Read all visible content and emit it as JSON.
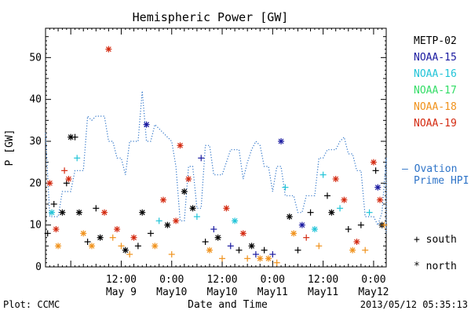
{
  "chart_data": {
    "type": "scatter",
    "title": "Hemispheric Power [GW]",
    "ylabel": "P [GW]",
    "xlabel": "Date and Time",
    "ylim": [
      0,
      57
    ],
    "xlim": [
      "2013-05-08 18:00",
      "2013-05-12 03:00"
    ],
    "yticks": [
      "0",
      "10",
      "20",
      "30",
      "40",
      "50"
    ],
    "xticks": [
      {
        "time": "2013-05-09 12:00",
        "l1": "12:00",
        "l2": "May 9"
      },
      {
        "time": "2013-05-10 00:00",
        "l1": "0:00",
        "l2": "May10"
      },
      {
        "time": "2013-05-10 12:00",
        "l1": "12:00",
        "l2": "May10"
      },
      {
        "time": "2013-05-11 00:00",
        "l1": "0:00",
        "l2": "May11"
      },
      {
        "time": "2013-05-11 12:00",
        "l1": "12:00",
        "l2": "May11"
      },
      {
        "time": "2013-05-12 00:00",
        "l1": "0:00",
        "l2": "May12"
      }
    ],
    "series": [
      {
        "name": "METP-02",
        "color": "#000000"
      },
      {
        "name": "NOAA-15",
        "color": "#1a1aa0"
      },
      {
        "name": "NOAA-16",
        "color": "#22c4d8"
      },
      {
        "name": "NOAA-17",
        "color": "#33dd66"
      },
      {
        "name": "NOAA-18",
        "color": "#f0921c"
      },
      {
        "name": "NOAA-19",
        "color": "#d42a10"
      }
    ],
    "ovation": {
      "name": "— Ovation Prime HPI",
      "color": "#2e74c8",
      "points": [
        [
          "05-08 18:00",
          32
        ],
        [
          "05-08 19:00",
          12
        ],
        [
          "05-08 21:00",
          12
        ],
        [
          "05-08 22:00",
          18
        ],
        [
          "05-09 00:00",
          18
        ],
        [
          "05-09 01:00",
          23
        ],
        [
          "05-09 03:00",
          23
        ],
        [
          "05-09 04:00",
          36
        ],
        [
          "05-09 05:00",
          35
        ],
        [
          "05-09 06:00",
          36
        ],
        [
          "05-09 08:00",
          36
        ],
        [
          "05-09 09:00",
          30
        ],
        [
          "05-09 10:00",
          30
        ],
        [
          "05-09 11:00",
          26
        ],
        [
          "05-09 12:00",
          26
        ],
        [
          "05-09 13:00",
          22
        ],
        [
          "05-09 14:00",
          30
        ],
        [
          "05-09 16:00",
          30
        ],
        [
          "05-09 17:00",
          42
        ],
        [
          "05-09 18:00",
          30
        ],
        [
          "05-09 19:00",
          30
        ],
        [
          "05-09 20:00",
          34
        ],
        [
          "05-09 22:00",
          32
        ],
        [
          "05-10 00:00",
          30
        ],
        [
          "05-10 01:00",
          24
        ],
        [
          "05-10 02:00",
          11
        ],
        [
          "05-10 03:00",
          11
        ],
        [
          "05-10 04:00",
          24
        ],
        [
          "05-10 05:00",
          24
        ],
        [
          "05-10 06:00",
          14
        ],
        [
          "05-10 07:00",
          14
        ],
        [
          "05-10 08:00",
          29
        ],
        [
          "05-10 09:00",
          29
        ],
        [
          "05-10 10:00",
          22
        ],
        [
          "05-10 12:00",
          22
        ],
        [
          "05-10 13:00",
          25
        ],
        [
          "05-10 14:00",
          28
        ],
        [
          "05-10 16:00",
          28
        ],
        [
          "05-10 17:00",
          21
        ],
        [
          "05-10 18:00",
          25
        ],
        [
          "05-10 19:00",
          28
        ],
        [
          "05-10 20:00",
          30
        ],
        [
          "05-10 21:00",
          29
        ],
        [
          "05-10 22:00",
          24
        ],
        [
          "05-10 23:00",
          24
        ],
        [
          "05-11 00:00",
          18
        ],
        [
          "05-11 01:00",
          24
        ],
        [
          "05-11 02:00",
          24
        ],
        [
          "05-11 03:00",
          17
        ],
        [
          "05-11 05:00",
          17
        ],
        [
          "05-11 06:00",
          13
        ],
        [
          "05-11 07:00",
          13
        ],
        [
          "05-11 08:00",
          17
        ],
        [
          "05-11 09:00",
          17
        ],
        [
          "05-11 10:00",
          17
        ],
        [
          "05-11 11:00",
          26
        ],
        [
          "05-11 12:00",
          26
        ],
        [
          "05-11 13:00",
          28
        ],
        [
          "05-11 15:00",
          28
        ],
        [
          "05-11 16:00",
          30
        ],
        [
          "05-11 17:00",
          31
        ],
        [
          "05-11 18:00",
          27
        ],
        [
          "05-11 19:00",
          27
        ],
        [
          "05-11 20:00",
          23
        ],
        [
          "05-11 21:00",
          23
        ],
        [
          "05-11 22:00",
          12
        ],
        [
          "05-12 00:00",
          12
        ],
        [
          "05-12 01:00",
          10
        ],
        [
          "05-12 02:00",
          13
        ],
        [
          "05-12 03:00",
          26
        ],
        [
          "05-12 03:00",
          8
        ]
      ]
    },
    "markers": [
      {
        "name": "+ south"
      },
      {
        "name": "* north"
      }
    ],
    "points": [
      {
        "t": "05-08 18:30",
        "v": 8,
        "s": 0,
        "m": "+"
      },
      {
        "t": "05-08 19:00",
        "v": 20,
        "s": 5,
        "m": "*"
      },
      {
        "t": "05-08 19:30",
        "v": 13,
        "s": 2,
        "m": "*"
      },
      {
        "t": "05-08 20:00",
        "v": 15,
        "s": 0,
        "m": "+"
      },
      {
        "t": "05-08 20:30",
        "v": 9,
        "s": 5,
        "m": "*"
      },
      {
        "t": "05-08 21:00",
        "v": 5,
        "s": 4,
        "m": "*"
      },
      {
        "t": "05-08 22:00",
        "v": 13,
        "s": 0,
        "m": "*"
      },
      {
        "t": "05-08 22:30",
        "v": 23,
        "s": 5,
        "m": "+"
      },
      {
        "t": "05-08 23:00",
        "v": 20,
        "s": 0,
        "m": "+"
      },
      {
        "t": "05-08 23:30",
        "v": 21,
        "s": 5,
        "m": "*"
      },
      {
        "t": "05-09 00:00",
        "v": 31,
        "s": 0,
        "m": "*"
      },
      {
        "t": "05-09 01:00",
        "v": 31,
        "s": 0,
        "m": "+"
      },
      {
        "t": "05-09 01:30",
        "v": 26,
        "s": 2,
        "m": "+"
      },
      {
        "t": "05-09 02:00",
        "v": 13,
        "s": 0,
        "m": "*"
      },
      {
        "t": "05-09 03:00",
        "v": 8,
        "s": 4,
        "m": "*"
      },
      {
        "t": "05-09 04:00",
        "v": 6,
        "s": 0,
        "m": "+"
      },
      {
        "t": "05-09 05:00",
        "v": 5,
        "s": 4,
        "m": "*"
      },
      {
        "t": "05-09 06:00",
        "v": 14,
        "s": 0,
        "m": "+"
      },
      {
        "t": "05-09 07:00",
        "v": 7,
        "s": 0,
        "m": "*"
      },
      {
        "t": "05-09 08:00",
        "v": 13,
        "s": 5,
        "m": "*"
      },
      {
        "t": "05-09 09:00",
        "v": 52,
        "s": 5,
        "m": "*"
      },
      {
        "t": "05-09 10:00",
        "v": 7,
        "s": 4,
        "m": "+"
      },
      {
        "t": "05-09 11:00",
        "v": 9,
        "s": 5,
        "m": "*"
      },
      {
        "t": "05-09 12:00",
        "v": 5,
        "s": 4,
        "m": "+"
      },
      {
        "t": "05-09 13:00",
        "v": 4,
        "s": 0,
        "m": "*"
      },
      {
        "t": "05-09 14:00",
        "v": 3,
        "s": 4,
        "m": "+"
      },
      {
        "t": "05-09 15:00",
        "v": 7,
        "s": 5,
        "m": "*"
      },
      {
        "t": "05-09 16:00",
        "v": 5,
        "s": 0,
        "m": "+"
      },
      {
        "t": "05-09 17:00",
        "v": 13,
        "s": 0,
        "m": "*"
      },
      {
        "t": "05-09 18:00",
        "v": 34,
        "s": 1,
        "m": "*"
      },
      {
        "t": "05-09 19:00",
        "v": 8,
        "s": 0,
        "m": "+"
      },
      {
        "t": "05-09 20:00",
        "v": 5,
        "s": 4,
        "m": "*"
      },
      {
        "t": "05-09 21:00",
        "v": 11,
        "s": 2,
        "m": "+"
      },
      {
        "t": "05-09 22:00",
        "v": 16,
        "s": 5,
        "m": "*"
      },
      {
        "t": "05-09 23:00",
        "v": 10,
        "s": 0,
        "m": "*"
      },
      {
        "t": "05-10 00:00",
        "v": 3,
        "s": 4,
        "m": "+"
      },
      {
        "t": "05-10 01:00",
        "v": 11,
        "s": 5,
        "m": "*"
      },
      {
        "t": "05-10 02:00",
        "v": 29,
        "s": 5,
        "m": "*"
      },
      {
        "t": "05-10 03:00",
        "v": 18,
        "s": 0,
        "m": "*"
      },
      {
        "t": "05-10 04:00",
        "v": 21,
        "s": 5,
        "m": "*"
      },
      {
        "t": "05-10 05:00",
        "v": 14,
        "s": 0,
        "m": "*"
      },
      {
        "t": "05-10 06:00",
        "v": 12,
        "s": 2,
        "m": "+"
      },
      {
        "t": "05-10 07:00",
        "v": 26,
        "s": 1,
        "m": "+"
      },
      {
        "t": "05-10 08:00",
        "v": 6,
        "s": 0,
        "m": "+"
      },
      {
        "t": "05-10 09:00",
        "v": 4,
        "s": 4,
        "m": "*"
      },
      {
        "t": "05-10 10:00",
        "v": 9,
        "s": 1,
        "m": "+"
      },
      {
        "t": "05-10 11:00",
        "v": 7,
        "s": 0,
        "m": "*"
      },
      {
        "t": "05-10 12:00",
        "v": 2,
        "s": 4,
        "m": "+"
      },
      {
        "t": "05-10 13:00",
        "v": 14,
        "s": 5,
        "m": "*"
      },
      {
        "t": "05-10 14:00",
        "v": 5,
        "s": 1,
        "m": "+"
      },
      {
        "t": "05-10 15:00",
        "v": 11,
        "s": 2,
        "m": "*"
      },
      {
        "t": "05-10 16:00",
        "v": 4,
        "s": 0,
        "m": "+"
      },
      {
        "t": "05-10 17:00",
        "v": 8,
        "s": 5,
        "m": "*"
      },
      {
        "t": "05-10 18:00",
        "v": 2,
        "s": 4,
        "m": "+"
      },
      {
        "t": "05-10 19:00",
        "v": 5,
        "s": 0,
        "m": "*"
      },
      {
        "t": "05-10 20:00",
        "v": 3,
        "s": 1,
        "m": "+"
      },
      {
        "t": "05-10 21:00",
        "v": 2,
        "s": 4,
        "m": "*"
      },
      {
        "t": "05-10 22:00",
        "v": 4,
        "s": 0,
        "m": "+"
      },
      {
        "t": "05-10 23:00",
        "v": 2,
        "s": 4,
        "m": "*"
      },
      {
        "t": "05-11 00:00",
        "v": 3,
        "s": 1,
        "m": "+"
      },
      {
        "t": "05-11 01:00",
        "v": 1,
        "s": 4,
        "m": "+"
      },
      {
        "t": "05-11 02:00",
        "v": 30,
        "s": 1,
        "m": "*"
      },
      {
        "t": "05-11 03:00",
        "v": 19,
        "s": 2,
        "m": "+"
      },
      {
        "t": "05-11 04:00",
        "v": 12,
        "s": 0,
        "m": "*"
      },
      {
        "t": "05-11 05:00",
        "v": 8,
        "s": 4,
        "m": "*"
      },
      {
        "t": "05-11 06:00",
        "v": 4,
        "s": 0,
        "m": "+"
      },
      {
        "t": "05-11 07:00",
        "v": 10,
        "s": 1,
        "m": "*"
      },
      {
        "t": "05-11 08:00",
        "v": 7,
        "s": 5,
        "m": "+"
      },
      {
        "t": "05-11 09:00",
        "v": 13,
        "s": 0,
        "m": "+"
      },
      {
        "t": "05-11 10:00",
        "v": 9,
        "s": 2,
        "m": "*"
      },
      {
        "t": "05-11 11:00",
        "v": 5,
        "s": 4,
        "m": "+"
      },
      {
        "t": "05-11 12:00",
        "v": 22,
        "s": 2,
        "m": "+"
      },
      {
        "t": "05-11 13:00",
        "v": 17,
        "s": 0,
        "m": "+"
      },
      {
        "t": "05-11 14:00",
        "v": 13,
        "s": 0,
        "m": "*"
      },
      {
        "t": "05-11 15:00",
        "v": 21,
        "s": 5,
        "m": "*"
      },
      {
        "t": "05-11 16:00",
        "v": 14,
        "s": 2,
        "m": "+"
      },
      {
        "t": "05-11 17:00",
        "v": 16,
        "s": 5,
        "m": "*"
      },
      {
        "t": "05-11 18:00",
        "v": 9,
        "s": 0,
        "m": "+"
      },
      {
        "t": "05-11 19:00",
        "v": 4,
        "s": 4,
        "m": "*"
      },
      {
        "t": "05-11 20:00",
        "v": 6,
        "s": 5,
        "m": "*"
      },
      {
        "t": "05-11 21:00",
        "v": 10,
        "s": 0,
        "m": "+"
      },
      {
        "t": "05-11 22:00",
        "v": 4,
        "s": 4,
        "m": "+"
      },
      {
        "t": "05-11 23:00",
        "v": 13,
        "s": 2,
        "m": "+"
      },
      {
        "t": "05-12 00:00",
        "v": 25,
        "s": 5,
        "m": "*"
      },
      {
        "t": "05-12 00:30",
        "v": 23,
        "s": 0,
        "m": "+"
      },
      {
        "t": "05-12 01:00",
        "v": 19,
        "s": 1,
        "m": "*"
      },
      {
        "t": "05-12 01:30",
        "v": 16,
        "s": 5,
        "m": "*"
      },
      {
        "t": "05-12 02:00",
        "v": 10,
        "s": 0,
        "m": "*"
      },
      {
        "t": "05-12 02:30",
        "v": 10,
        "s": 4,
        "m": "+"
      }
    ]
  },
  "footer": {
    "plot_credit": "Plot: CCMC",
    "timestamp": "2013/05/12 05:35:13"
  }
}
